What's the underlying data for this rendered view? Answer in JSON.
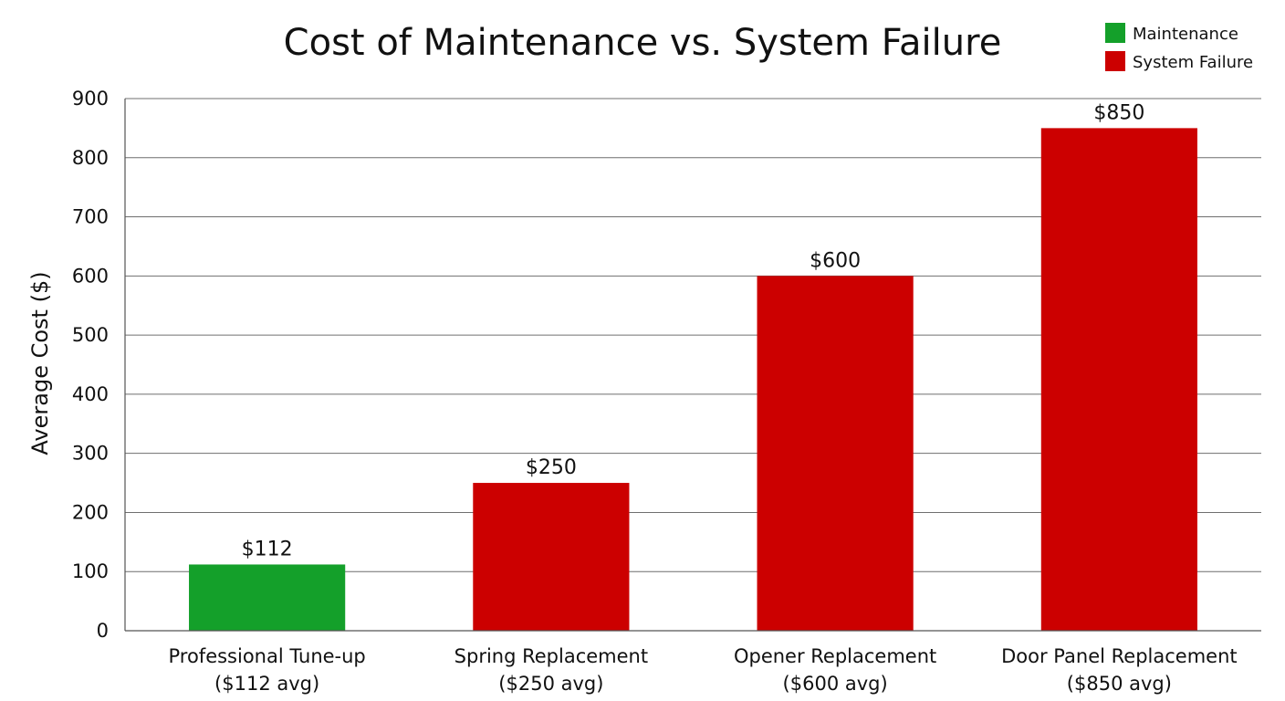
{
  "chart_data": {
    "type": "bar",
    "title": "Cost of Maintenance vs. System Failure",
    "xlabel": "",
    "ylabel": "Average Cost ($)",
    "ylim": [
      0,
      900
    ],
    "yticks": [
      0,
      100,
      200,
      300,
      400,
      500,
      600,
      700,
      800,
      900
    ],
    "grid": true,
    "legend_position": "top-right",
    "legend": [
      {
        "name": "Maintenance",
        "color": "#14a02a"
      },
      {
        "name": "System Failure",
        "color": "#cc0000"
      }
    ],
    "categories": [
      {
        "line1": "Professional Tune-up",
        "line2": "($112 avg)"
      },
      {
        "line1": "Spring Replacement",
        "line2": "($250 avg)"
      },
      {
        "line1": "Opener Replacement",
        "line2": "($600 avg)"
      },
      {
        "line1": "Door Panel Replacement",
        "line2": "($850 avg)"
      }
    ],
    "values": [
      112,
      250,
      600,
      850
    ],
    "value_labels": [
      "$112",
      "$250",
      "$600",
      "$850"
    ],
    "series_index": [
      0,
      1,
      1,
      1
    ]
  }
}
